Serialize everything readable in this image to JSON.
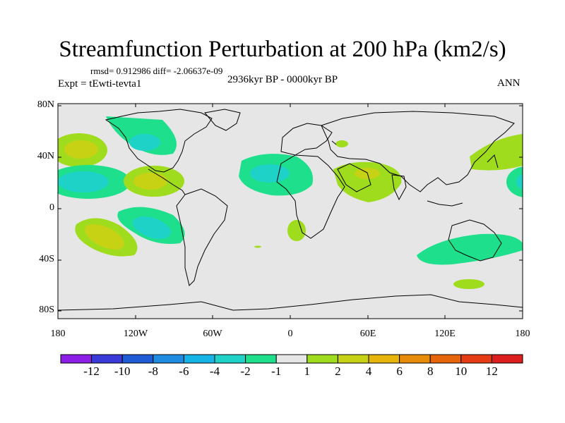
{
  "title": "Streamfunction Perturbation at 200 hPa (km2/s)",
  "stats": "rmsd= 0.912986 diff= -2.06637e-09",
  "experiment": "Expt = tEwti-tevta1",
  "period": "2936kyr BP - 0000kyr BP",
  "season": "ANN",
  "lat_labels": [
    "80N",
    "40N",
    "0",
    "40S",
    "80S"
  ],
  "lon_labels": [
    "180",
    "120W",
    "60W",
    "0",
    "60E",
    "120E",
    "180"
  ],
  "colorbar": {
    "labels": [
      "-12",
      "-10",
      "-8",
      "-6",
      "-4",
      "-2",
      "-1",
      "1",
      "2",
      "4",
      "6",
      "8",
      "10",
      "12"
    ],
    "colors": [
      "#8c1ee6",
      "#3a3ad8",
      "#1e5cd6",
      "#1e8ce0",
      "#14b4e6",
      "#1ed2c8",
      "#1ee08c",
      "#e6e6e6",
      "#a0dc1e",
      "#c8d214",
      "#e6b40a",
      "#e68c0a",
      "#e6640a",
      "#e63c14",
      "#dc1e1e"
    ]
  },
  "colors": {
    "background": "#e6e6e6",
    "land_outline": "#000000"
  }
}
